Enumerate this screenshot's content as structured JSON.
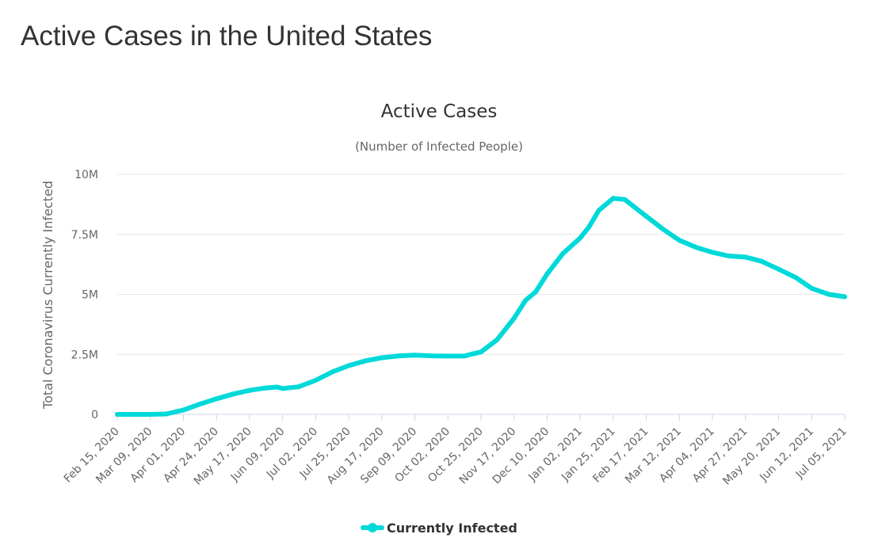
{
  "page": {
    "heading": "Active Cases in the United States"
  },
  "chart_data": {
    "type": "line",
    "title": "Active Cases",
    "subtitle": "(Number of Infected People)",
    "xlabel": "",
    "ylabel": "Total Coronavirus Currently Infected",
    "x_tick_labels": [
      "Feb 15, 2020",
      "Mar 09, 2020",
      "Apr 01, 2020",
      "Apr 24, 2020",
      "May 17, 2020",
      "Jun 09, 2020",
      "Jul 02, 2020",
      "Jul 25, 2020",
      "Aug 17, 2020",
      "Sep 09, 2020",
      "Oct 02, 2020",
      "Oct 25, 2020",
      "Nov 17, 2020",
      "Dec 10, 2020",
      "Jan 02, 2021",
      "Jan 25, 2021",
      "Feb 17, 2021",
      "Mar 12, 2021",
      "Apr 04, 2021",
      "Apr 27, 2021",
      "May 20, 2021",
      "Jun 12, 2021",
      "Jul 05, 2021"
    ],
    "y_ticks": [
      {
        "value": 0,
        "label": "0"
      },
      {
        "value": 2500000,
        "label": "2.5M"
      },
      {
        "value": 5000000,
        "label": "5M"
      },
      {
        "value": 7500000,
        "label": "7.5M"
      },
      {
        "value": 10000000,
        "label": "10M"
      }
    ],
    "ylim": [
      0,
      10000000
    ],
    "grid": true,
    "legend_position": "bottom-center",
    "series": [
      {
        "name": "Currently Infected",
        "color": "#00d9d9",
        "points": [
          {
            "x": "Feb 15, 2020",
            "y": 10
          },
          {
            "x": "Mar 09, 2020",
            "y": 500
          },
          {
            "x": "Mar 20, 2020",
            "y": 15000
          },
          {
            "x": "Apr 01, 2020",
            "y": 180000
          },
          {
            "x": "Apr 12, 2020",
            "y": 420000
          },
          {
            "x": "Apr 24, 2020",
            "y": 650000
          },
          {
            "x": "May 06, 2020",
            "y": 850000
          },
          {
            "x": "May 17, 2020",
            "y": 1000000
          },
          {
            "x": "May 28, 2020",
            "y": 1100000
          },
          {
            "x": "Jun 05, 2020",
            "y": 1140000
          },
          {
            "x": "Jun 09, 2020",
            "y": 1080000
          },
          {
            "x": "Jun 20, 2020",
            "y": 1150000
          },
          {
            "x": "Jul 02, 2020",
            "y": 1420000
          },
          {
            "x": "Jul 14, 2020",
            "y": 1780000
          },
          {
            "x": "Jul 25, 2020",
            "y": 2030000
          },
          {
            "x": "Aug 05, 2020",
            "y": 2220000
          },
          {
            "x": "Aug 17, 2020",
            "y": 2360000
          },
          {
            "x": "Aug 29, 2020",
            "y": 2440000
          },
          {
            "x": "Sep 09, 2020",
            "y": 2470000
          },
          {
            "x": "Sep 21, 2020",
            "y": 2440000
          },
          {
            "x": "Oct 02, 2020",
            "y": 2430000
          },
          {
            "x": "Oct 13, 2020",
            "y": 2430000
          },
          {
            "x": "Oct 25, 2020",
            "y": 2600000
          },
          {
            "x": "Nov 05, 2020",
            "y": 3100000
          },
          {
            "x": "Nov 17, 2020",
            "y": 4000000
          },
          {
            "x": "Nov 25, 2020",
            "y": 4750000
          },
          {
            "x": "Dec 02, 2020",
            "y": 5100000
          },
          {
            "x": "Dec 10, 2020",
            "y": 5850000
          },
          {
            "x": "Dec 21, 2020",
            "y": 6700000
          },
          {
            "x": "Jan 02, 2021",
            "y": 7350000
          },
          {
            "x": "Jan 08, 2021",
            "y": 7800000
          },
          {
            "x": "Jan 15, 2021",
            "y": 8500000
          },
          {
            "x": "Jan 25, 2021",
            "y": 9000000
          },
          {
            "x": "Feb 02, 2021",
            "y": 8950000
          },
          {
            "x": "Feb 17, 2021",
            "y": 8250000
          },
          {
            "x": "Mar 01, 2021",
            "y": 7700000
          },
          {
            "x": "Mar 12, 2021",
            "y": 7250000
          },
          {
            "x": "Mar 24, 2021",
            "y": 6950000
          },
          {
            "x": "Apr 04, 2021",
            "y": 6750000
          },
          {
            "x": "Apr 15, 2021",
            "y": 6600000
          },
          {
            "x": "Apr 27, 2021",
            "y": 6550000
          },
          {
            "x": "May 08, 2021",
            "y": 6380000
          },
          {
            "x": "May 20, 2021",
            "y": 6050000
          },
          {
            "x": "Jun 01, 2021",
            "y": 5700000
          },
          {
            "x": "Jun 12, 2021",
            "y": 5250000
          },
          {
            "x": "Jun 24, 2021",
            "y": 5000000
          },
          {
            "x": "Jul 05, 2021",
            "y": 4900000
          }
        ]
      }
    ]
  }
}
